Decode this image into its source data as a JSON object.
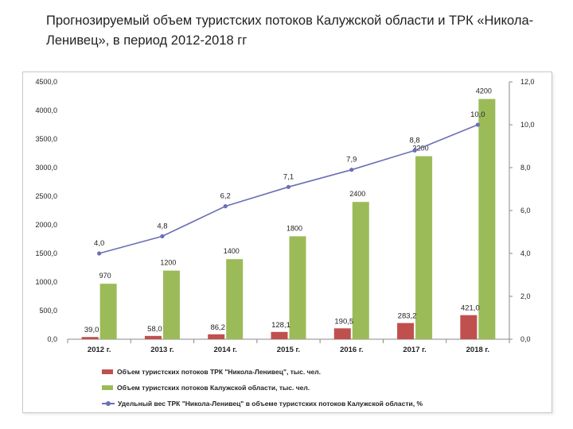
{
  "title": "Прогнозируемый объем туристских потоков Калужской области и ТРК «Никола-Ленивец», в период 2012-2018 гг",
  "chart_data": {
    "type": "bar",
    "categories": [
      "2012 г.",
      "2013 г.",
      "2014 г.",
      "2015 г.",
      "2016 г.",
      "2017 г.",
      "2018 г."
    ],
    "series": [
      {
        "name": "Объем туристских потоков ТРК \"Никола-Ленивец\", тыс. чел.",
        "type": "bar",
        "axis": "left",
        "color": "#c0504d",
        "values": [
          39.0,
          58.0,
          86.2,
          128.1,
          190.5,
          283.2,
          421.0
        ],
        "labels": [
          "39,0",
          "58,0",
          "86,2",
          "128,1",
          "190,5",
          "283,2",
          "421,0"
        ]
      },
      {
        "name": "Объем туристских потоков Калужской области, тыс. чел.",
        "type": "bar",
        "axis": "left",
        "color": "#9bbb59",
        "values": [
          970,
          1200,
          1400,
          1800,
          2400,
          3200,
          4200
        ],
        "labels": [
          "970",
          "1200",
          "1400",
          "1800",
          "2400",
          "3200",
          "4200"
        ]
      },
      {
        "name": "Удельный вес ТРК \"Никола-Ленивец\" в объеме туристских потоков Калужской области, %",
        "type": "line",
        "axis": "right",
        "color": "#6b6fb5",
        "values": [
          4.0,
          4.8,
          6.2,
          7.1,
          7.9,
          8.8,
          10.0
        ],
        "labels": [
          "4,0",
          "4,8",
          "6,2",
          "7,1",
          "7,9",
          "8,8",
          "10,0"
        ]
      }
    ],
    "y_left": {
      "ylim": [
        0,
        4500
      ],
      "ticks": [
        0,
        500,
        1000,
        1500,
        2000,
        2500,
        3000,
        3500,
        4000,
        4500
      ],
      "tick_labels": [
        "0,0",
        "500,0",
        "1000,0",
        "1500,0",
        "2000,0",
        "2500,0",
        "3000,0",
        "3500,0",
        "4000,0",
        "4500,0"
      ]
    },
    "y_right": {
      "ylim": [
        0,
        12
      ],
      "ticks": [
        0,
        2,
        4,
        6,
        8,
        10,
        12
      ],
      "tick_labels": [
        "0,0",
        "2,0",
        "4,0",
        "6,0",
        "8,0",
        "10,0",
        "12,0"
      ]
    },
    "grid": false,
    "legend_position": "bottom"
  }
}
